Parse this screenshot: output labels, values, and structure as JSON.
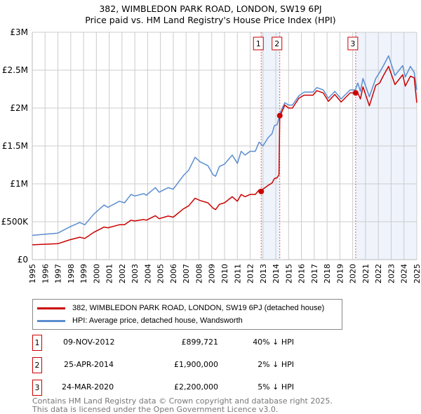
{
  "chart_data": {
    "type": "line",
    "title": "382, WIMBLEDON PARK ROAD, LONDON, SW19 6PJ",
    "subtitle": "Price paid vs. HM Land Registry's House Price Index (HPI)",
    "xlim": [
      1995,
      2025
    ],
    "ylim": [
      0,
      3000000
    ],
    "x_ticks": [
      "1995",
      "1996",
      "1997",
      "1998",
      "1999",
      "2000",
      "2001",
      "2002",
      "2003",
      "2004",
      "2005",
      "2006",
      "2007",
      "2008",
      "2009",
      "2010",
      "2011",
      "2012",
      "2013",
      "2014",
      "2015",
      "2016",
      "2017",
      "2018",
      "2019",
      "2020",
      "2021",
      "2022",
      "2023",
      "2024",
      "2025"
    ],
    "y_ticks": [
      {
        "v": 0,
        "l": "£0"
      },
      {
        "v": 500000,
        "l": "£500K"
      },
      {
        "v": 1000000,
        "l": "£1M"
      },
      {
        "v": 1500000,
        "l": "£1.5M"
      },
      {
        "v": 2000000,
        "l": "£2M"
      },
      {
        "v": 2500000,
        "l": "£2.5M"
      },
      {
        "v": 3000000,
        "l": "£3M"
      }
    ],
    "grid": true,
    "series": [
      {
        "name": "382, WIMBLEDON PARK ROAD, LONDON, SW19 6PJ (detached house)",
        "color": "#cc0000",
        "x": [
          1995,
          1997.0,
          1997.9,
          1998.7,
          1999.1,
          1999.8,
          2000.6,
          2000.9,
          2001.8,
          2002.2,
          2002.7,
          2003.0,
          2003.7,
          2003.9,
          2004.6,
          2004.9,
          2005.6,
          2006.0,
          2006.8,
          2007.2,
          2007.7,
          2008.1,
          2008.7,
          2009.1,
          2009.3,
          2009.6,
          2010.0,
          2010.6,
          2011.0,
          2011.3,
          2011.6,
          2012.0,
          2012.4,
          2012.7,
          2012.86,
          2013.0,
          2013.4,
          2013.7,
          2013.9,
          2014.1,
          2014.25,
          2014.31,
          2014.4,
          2014.7,
          2015.0,
          2015.3,
          2015.8,
          2016.2,
          2016.9,
          2017.2,
          2017.7,
          2018.1,
          2018.6,
          2019.1,
          2019.8,
          2020.23,
          2020.4,
          2020.6,
          2020.8,
          2021.3,
          2021.8,
          2022.1,
          2022.4,
          2022.8,
          2023.3,
          2023.9,
          2024.1,
          2024.5,
          2024.8,
          2025.0
        ],
        "y": [
          195000,
          210000,
          260000,
          295000,
          280000,
          360000,
          430000,
          420000,
          460000,
          460000,
          520000,
          510000,
          530000,
          520000,
          580000,
          540000,
          575000,
          560000,
          670000,
          710000,
          810000,
          780000,
          750000,
          680000,
          660000,
          730000,
          750000,
          830000,
          770000,
          860000,
          830000,
          860000,
          860000,
          920000,
          899721,
          930000,
          980000,
          1010000,
          1070000,
          1080000,
          1120000,
          1900000,
          1920000,
          2040000,
          2000000,
          2000000,
          2130000,
          2170000,
          2170000,
          2230000,
          2200000,
          2090000,
          2180000,
          2080000,
          2200000,
          2200000,
          2200000,
          2120000,
          2280000,
          2030000,
          2300000,
          2330000,
          2430000,
          2550000,
          2310000,
          2440000,
          2290000,
          2420000,
          2400000,
          2070000
        ]
      },
      {
        "name": "HPI: Average price, detached house, Wandsworth",
        "color": "#5b8dd0",
        "x": [
          1995,
          1997.0,
          1997.9,
          1998.7,
          1999.1,
          1999.8,
          2000.6,
          2000.9,
          2001.8,
          2002.2,
          2002.7,
          2003.0,
          2003.7,
          2003.9,
          2004.6,
          2004.9,
          2005.6,
          2006.0,
          2006.8,
          2007.2,
          2007.7,
          2008.1,
          2008.7,
          2009.1,
          2009.3,
          2009.6,
          2010.0,
          2010.6,
          2011.0,
          2011.3,
          2011.6,
          2012.0,
          2012.4,
          2012.7,
          2013.0,
          2013.4,
          2013.7,
          2013.9,
          2014.1,
          2014.4,
          2014.7,
          2015.0,
          2015.3,
          2015.8,
          2016.2,
          2016.9,
          2017.2,
          2017.7,
          2018.1,
          2018.6,
          2019.1,
          2019.8,
          2020.2,
          2020.4,
          2020.6,
          2020.8,
          2021.3,
          2021.8,
          2022.1,
          2022.4,
          2022.8,
          2023.3,
          2023.9,
          2024.1,
          2024.5,
          2024.8,
          2025.0
        ],
        "y": [
          320000,
          350000,
          430000,
          490000,
          460000,
          600000,
          720000,
          690000,
          770000,
          750000,
          860000,
          840000,
          870000,
          850000,
          950000,
          890000,
          950000,
          930000,
          1110000,
          1180000,
          1350000,
          1290000,
          1240000,
          1120000,
          1100000,
          1230000,
          1260000,
          1380000,
          1270000,
          1430000,
          1380000,
          1430000,
          1430000,
          1550000,
          1500000,
          1610000,
          1660000,
          1770000,
          1780000,
          1960000,
          2070000,
          2040000,
          2040000,
          2160000,
          2210000,
          2210000,
          2270000,
          2240000,
          2130000,
          2220000,
          2120000,
          2240000,
          2240000,
          2330000,
          2220000,
          2390000,
          2150000,
          2390000,
          2470000,
          2560000,
          2690000,
          2430000,
          2560000,
          2410000,
          2550000,
          2470000,
          2240000
        ]
      }
    ],
    "sales": [
      {
        "label": "1",
        "x": 2012.86,
        "y": 899721,
        "date": "09-NOV-2012",
        "price": "£899,721",
        "hpi": "40% ↓ HPI"
      },
      {
        "label": "2",
        "x": 2014.31,
        "y": 1900000,
        "date": "25-APR-2014",
        "price": "£1,900,000",
        "hpi": "2% ↓ HPI"
      },
      {
        "label": "3",
        "x": 2020.23,
        "y": 2200000,
        "date": "24-MAR-2020",
        "price": "£2,200,000",
        "hpi": "5% ↓ HPI"
      }
    ],
    "shaded_ranges": [
      [
        2012.86,
        2014.31
      ],
      [
        2020.23,
        2025
      ]
    ],
    "legend_position": "below"
  },
  "footer": {
    "line1": "Contains HM Land Registry data © Crown copyright and database right 2025.",
    "line2": "This data is licensed under the Open Government Licence v3.0."
  }
}
